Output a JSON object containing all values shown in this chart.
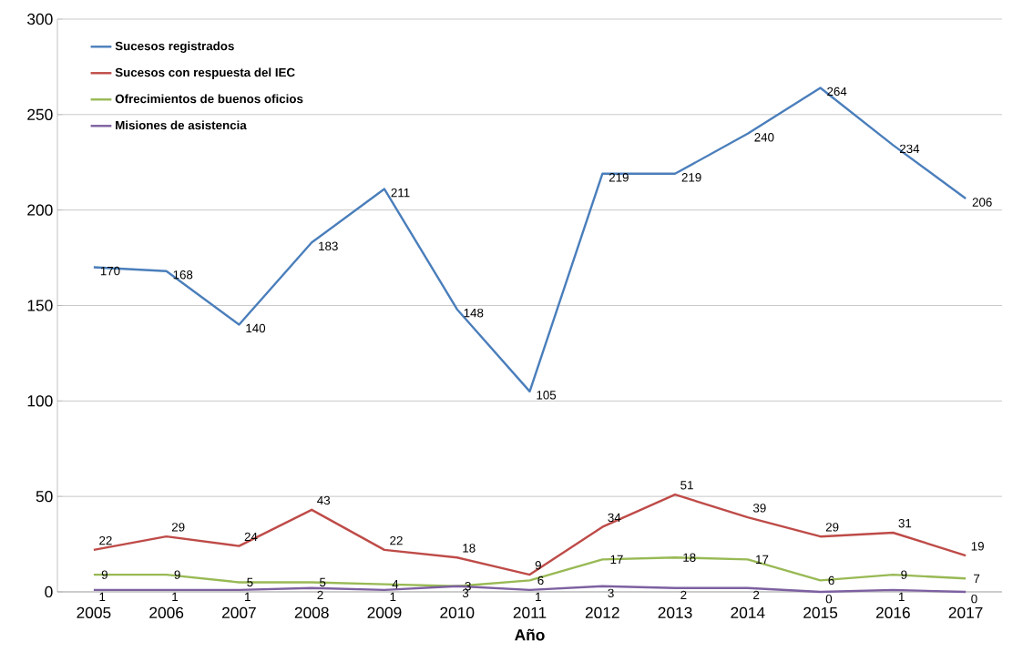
{
  "chart_data": {
    "type": "line",
    "xlabel": "Año",
    "categories": [
      "2005",
      "2006",
      "2007",
      "2008",
      "2009",
      "2010",
      "2011",
      "2012",
      "2013",
      "2014",
      "2015",
      "2016",
      "2017"
    ],
    "series": [
      {
        "name": "Sucesos registrados",
        "color": "#4a7ebb",
        "values": [
          170,
          168,
          140,
          183,
          211,
          148,
          105,
          219,
          219,
          240,
          264,
          234,
          206
        ]
      },
      {
        "name": "Sucesos con respuesta del IEC",
        "color": "#be4b48",
        "values": [
          22,
          29,
          24,
          43,
          22,
          18,
          9,
          34,
          51,
          39,
          29,
          31,
          19
        ]
      },
      {
        "name": "Ofrecimientos de buenos oficios",
        "color": "#98b954",
        "values": [
          9,
          9,
          5,
          5,
          4,
          3,
          6,
          17,
          18,
          17,
          6,
          9,
          7
        ]
      },
      {
        "name": "Misiones de asistencia",
        "color": "#7d60a0",
        "values": [
          1,
          1,
          1,
          2,
          1,
          3,
          1,
          3,
          2,
          2,
          0,
          1,
          0
        ]
      }
    ],
    "ylim": [
      0,
      300
    ],
    "yticks": [
      0,
      50,
      100,
      150,
      200,
      250,
      300
    ],
    "grid": "y",
    "legend": "top left",
    "marker": "none",
    "line_style": "solid",
    "data_labels": true
  }
}
